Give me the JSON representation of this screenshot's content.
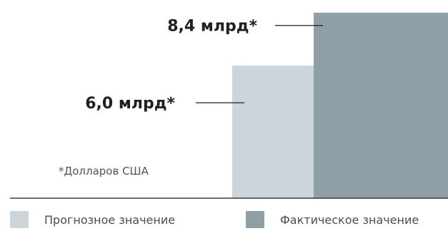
{
  "chart_data": {
    "type": "bar",
    "categories": [
      "Прогнозное значение",
      "Фактическое значение"
    ],
    "values": [
      6.0,
      8.4
    ],
    "value_labels": [
      "6,0 млрд*",
      "8,4 млрд*"
    ],
    "colors": [
      "#ccd5d9",
      "#8e9fa5"
    ],
    "ylim": [
      0,
      8.65
    ],
    "note": "*Долларов США",
    "title": "",
    "xlabel": "",
    "ylabel": "",
    "legend_position": "bottom"
  }
}
